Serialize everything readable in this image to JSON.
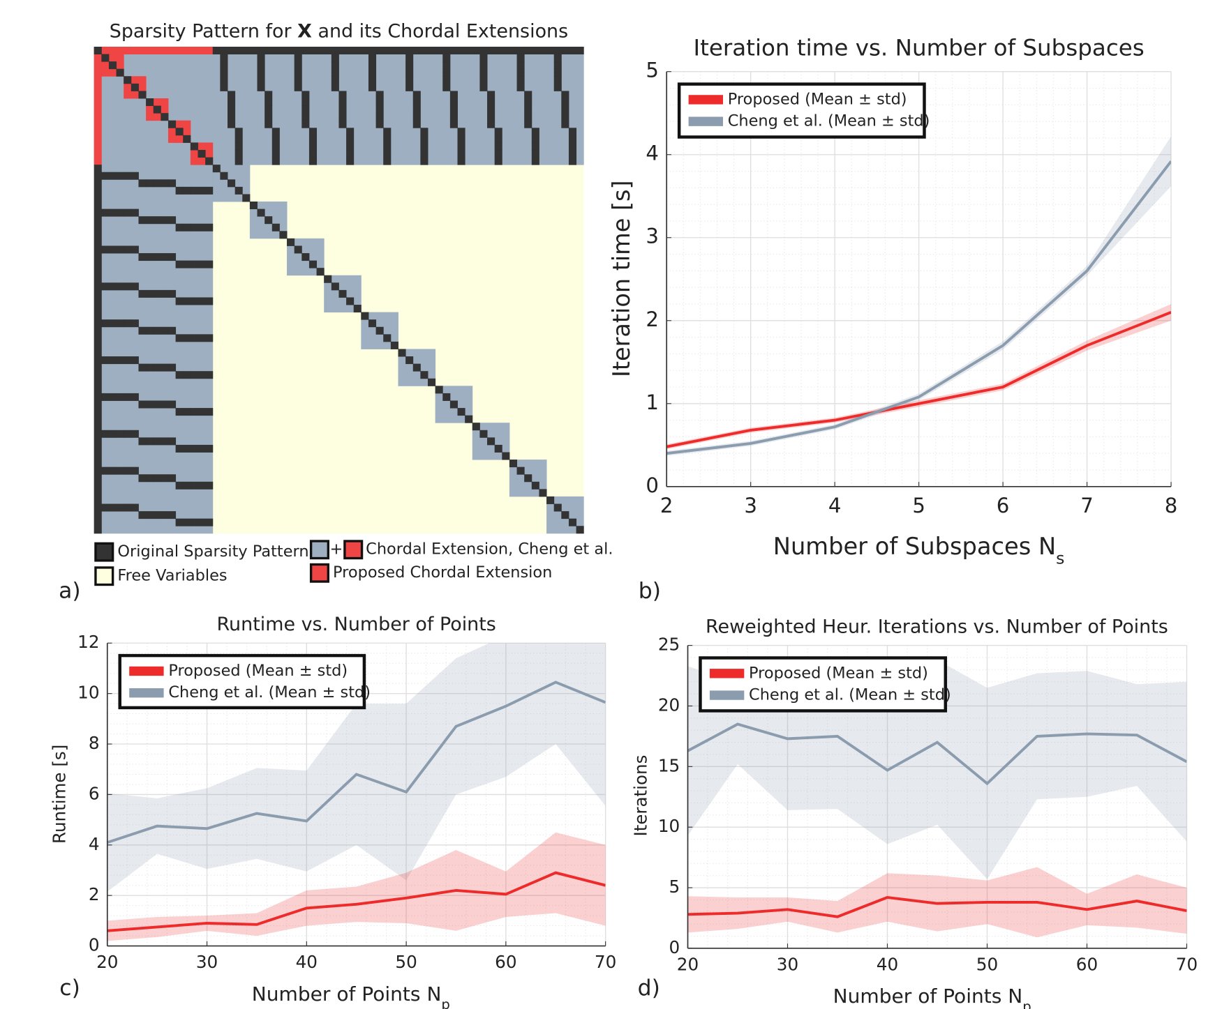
{
  "chart_data": [
    {
      "type": "sparsity",
      "title_parts": [
        "Sparsity Pattern for ",
        "X",
        " and its Chordal Extensions"
      ],
      "panel_label": "a)",
      "legend": [
        {
          "name": "Original Sparsity Pattern",
          "color": "#333333"
        },
        {
          "name": "Free Variables",
          "color": "#fefee0"
        },
        {
          "name": "Chordal Extension, Cheng et al.",
          "color": "#9dafc1"
        },
        {
          "name": "Proposed Chordal Extension",
          "color": "#ef4545"
        }
      ],
      "joiner": "+"
    },
    {
      "type": "line",
      "title": "Iteration time vs. Number of Subspaces",
      "panel_label": "b)",
      "xlabel": "Number of Subspaces N",
      "xlabel_sub": "s",
      "ylabel": "Iteration time [s]",
      "x": [
        2,
        3,
        4,
        5,
        6,
        7,
        8
      ],
      "xlim": [
        2,
        8
      ],
      "xticks": [
        2,
        3,
        4,
        5,
        6,
        7,
        8
      ],
      "ylim": [
        0,
        5
      ],
      "yticks": [
        0,
        1,
        2,
        3,
        4,
        5
      ],
      "grid": true,
      "legend_position": "upper left",
      "series": [
        {
          "name": "Proposed (Mean ± std)",
          "color": "#ee2b2b",
          "values": [
            0.48,
            0.68,
            0.8,
            1.0,
            1.2,
            1.7,
            2.1
          ],
          "std": [
            0.03,
            0.03,
            0.03,
            0.04,
            0.04,
            0.06,
            0.1
          ]
        },
        {
          "name": "Cheng et al. (Mean ± std)",
          "color": "#8b9cae",
          "values": [
            0.4,
            0.52,
            0.72,
            1.08,
            1.7,
            2.6,
            3.92
          ],
          "std": [
            0.03,
            0.03,
            0.03,
            0.04,
            0.05,
            0.06,
            0.3
          ]
        }
      ]
    },
    {
      "type": "line",
      "title": "Runtime vs. Number of Points",
      "panel_label": "c)",
      "xlabel": "Number of Points N",
      "xlabel_sub": "p",
      "ylabel": "Runtime [s]",
      "x": [
        20,
        25,
        30,
        35,
        40,
        45,
        50,
        55,
        60,
        65,
        70
      ],
      "xlim": [
        20,
        70
      ],
      "xticks": [
        20,
        30,
        40,
        50,
        60,
        70
      ],
      "ylim": [
        0,
        12
      ],
      "yticks": [
        0,
        2,
        4,
        6,
        8,
        10,
        12
      ],
      "grid": true,
      "legend_position": "upper left",
      "series": [
        {
          "name": "Proposed (Mean ± std)",
          "color": "#ee2b2b",
          "values": [
            0.6,
            0.75,
            0.9,
            0.85,
            1.5,
            1.65,
            1.9,
            2.2,
            2.05,
            2.9,
            2.4
          ],
          "std": [
            0.4,
            0.4,
            0.3,
            0.45,
            0.7,
            0.7,
            1.0,
            1.6,
            0.9,
            1.6,
            1.6
          ]
        },
        {
          "name": "Cheng et al. (Mean ± std)",
          "color": "#8b9cae",
          "values": [
            4.1,
            4.75,
            4.65,
            5.25,
            4.95,
            6.8,
            6.1,
            8.7,
            9.5,
            10.45,
            9.65
          ],
          "std": [
            1.95,
            1.1,
            1.6,
            1.8,
            2.0,
            2.8,
            3.5,
            2.7,
            2.8,
            2.45,
            4.1
          ]
        }
      ]
    },
    {
      "type": "line",
      "title": "Reweighted Heur. Iterations vs. Number of Points",
      "panel_label": "d)",
      "xlabel": "Number of Points N",
      "xlabel_sub": "p",
      "ylabel": "Iterations",
      "x": [
        20,
        25,
        30,
        35,
        40,
        45,
        50,
        55,
        60,
        65,
        70
      ],
      "xlim": [
        20,
        70
      ],
      "xticks": [
        20,
        30,
        40,
        50,
        60,
        70
      ],
      "ylim": [
        0,
        25
      ],
      "yticks": [
        0,
        5,
        10,
        15,
        20,
        25
      ],
      "grid": true,
      "legend_position": "upper left",
      "series": [
        {
          "name": "Proposed (Mean ± std)",
          "color": "#ee2b2b",
          "values": [
            2.8,
            2.9,
            3.2,
            2.6,
            4.2,
            3.7,
            3.8,
            3.8,
            3.2,
            3.9,
            3.1
          ],
          "std": [
            1.5,
            1.3,
            1.0,
            1.3,
            2.0,
            2.3,
            1.8,
            2.9,
            1.3,
            2.2,
            1.9
          ]
        },
        {
          "name": "Cheng et al. (Mean ± std)",
          "color": "#8b9cae",
          "values": [
            16.3,
            18.5,
            17.3,
            17.5,
            14.7,
            17.0,
            13.6,
            17.5,
            17.7,
            17.6,
            15.4
          ],
          "std": [
            7.0,
            3.3,
            5.9,
            6.0,
            6.1,
            6.8,
            7.9,
            5.2,
            5.2,
            4.2,
            6.6
          ]
        }
      ]
    }
  ]
}
